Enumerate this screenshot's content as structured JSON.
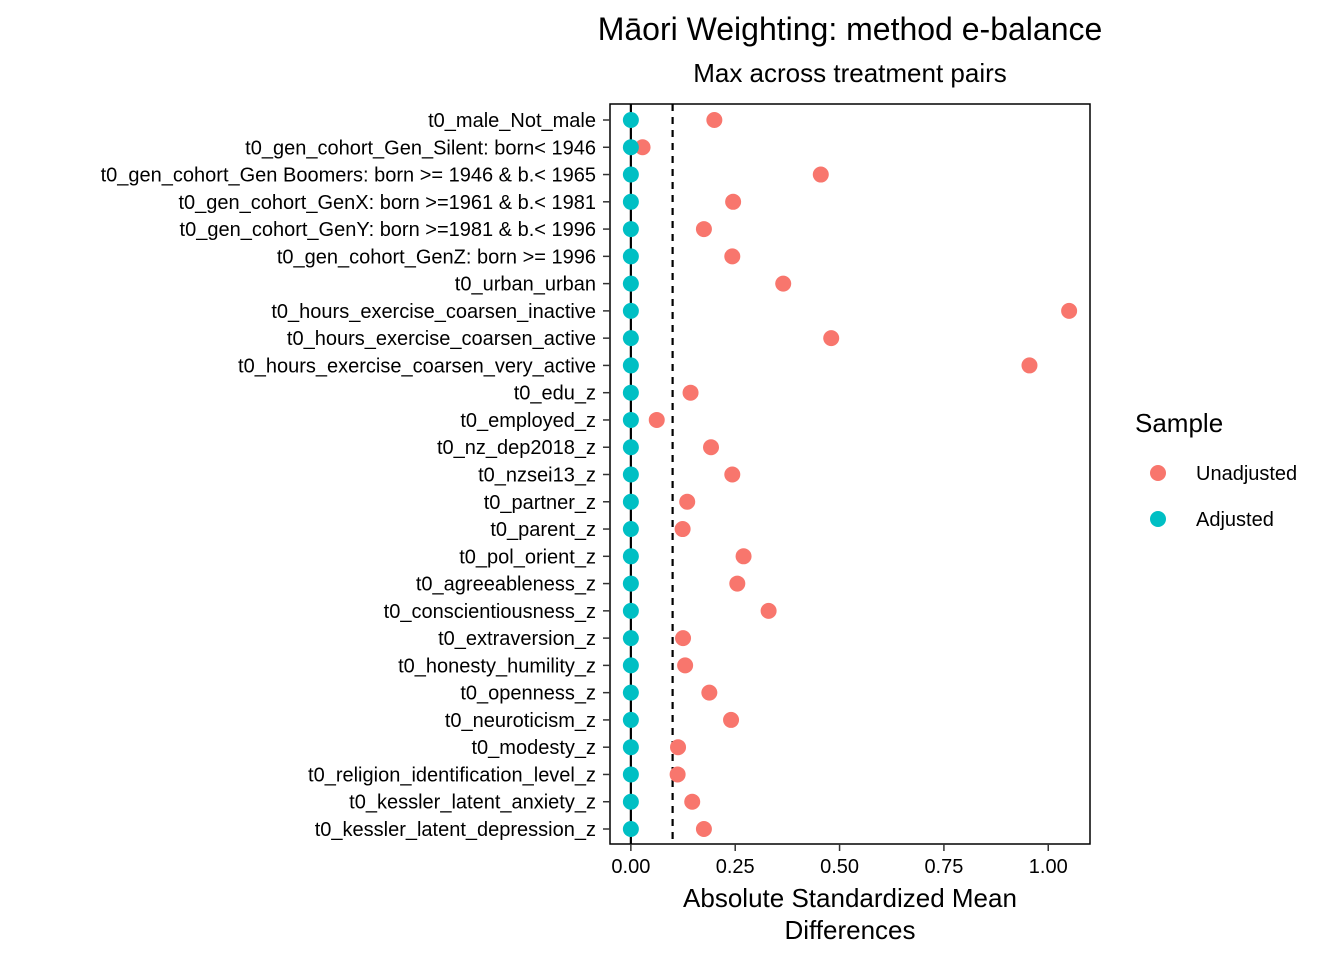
{
  "chart_data": {
    "type": "scatter",
    "title": "Māori Weighting: method e-balance",
    "subtitle": "Max across treatment pairs",
    "xlabel_lines": [
      "Absolute Standardized Mean",
      "Differences"
    ],
    "xlim": [
      -0.05,
      1.1
    ],
    "xticks": [
      0.0,
      0.25,
      0.5,
      0.75,
      1.0
    ],
    "xtick_labels": [
      "0.00",
      "0.25",
      "0.50",
      "0.75",
      "1.00"
    ],
    "reference_lines": {
      "solid": 0,
      "dashed": 0.1
    },
    "grid": false,
    "legend": {
      "title": "Sample",
      "position": "right",
      "entries": [
        {
          "label": "Unadjusted",
          "color": "#F8766D"
        },
        {
          "label": "Adjusted",
          "color": "#00BFC4"
        }
      ]
    },
    "categories": [
      "t0_male_Not_male",
      "t0_gen_cohort_Gen_Silent: born< 1946",
      "t0_gen_cohort_Gen Boomers: born >= 1946 & b.< 1965",
      "t0_gen_cohort_GenX: born >=1961 & b.< 1981",
      "t0_gen_cohort_GenY: born >=1981 & b.< 1996",
      "t0_gen_cohort_GenZ: born >= 1996",
      "t0_urban_urban",
      "t0_hours_exercise_coarsen_inactive",
      "t0_hours_exercise_coarsen_active",
      "t0_hours_exercise_coarsen_very_active",
      "t0_edu_z",
      "t0_employed_z",
      "t0_nz_dep2018_z",
      "t0_nzsei13_z",
      "t0_partner_z",
      "t0_parent_z",
      "t0_pol_orient_z",
      "t0_agreeableness_z",
      "t0_conscientiousness_z",
      "t0_extraversion_z",
      "t0_honesty_humility_z",
      "t0_openness_z",
      "t0_neuroticism_z",
      "t0_modesty_z",
      "t0_religion_identification_level_z",
      "t0_kessler_latent_anxiety_z",
      "t0_kessler_latent_depression_z"
    ],
    "series": [
      {
        "name": "Unadjusted",
        "color": "#F8766D",
        "values": [
          0.2,
          0.028,
          0.455,
          0.245,
          0.175,
          0.243,
          0.365,
          1.05,
          0.48,
          0.955,
          0.143,
          0.062,
          0.192,
          0.243,
          0.135,
          0.124,
          0.27,
          0.255,
          0.33,
          0.125,
          0.13,
          0.188,
          0.24,
          0.113,
          0.112,
          0.147,
          0.175
        ]
      },
      {
        "name": "Adjusted",
        "color": "#00BFC4",
        "values": [
          0,
          0,
          0,
          0,
          0,
          0,
          0,
          0,
          0,
          0,
          0,
          0,
          0,
          0,
          0,
          0,
          0,
          0,
          0,
          0,
          0,
          0,
          0,
          0,
          0,
          0,
          0
        ]
      }
    ]
  }
}
